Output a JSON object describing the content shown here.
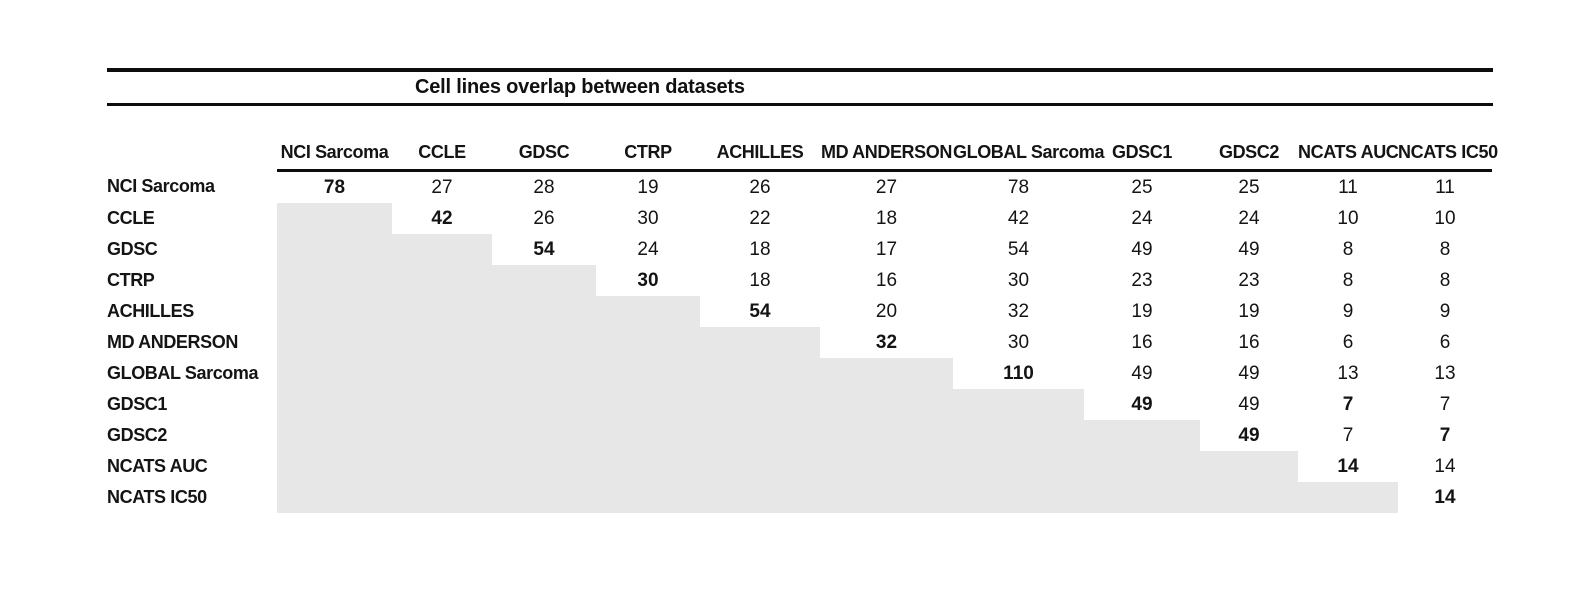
{
  "title": "Cell lines overlap between datasets",
  "columns": [
    "NCI Sarcoma",
    "CCLE",
    "GDSC",
    "CTRP",
    "ACHILLES",
    "MD ANDERSON",
    "GLOBAL Sarcoma",
    "GDSC1",
    "GDSC2",
    "NCATS AUC",
    "NCATS IC50"
  ],
  "rows": [
    {
      "label": "NCI Sarcoma",
      "values": [
        "78",
        "27",
        "28",
        "19",
        "26",
        "27",
        "78",
        "25",
        "25",
        "11",
        "11"
      ],
      "bold": [
        0
      ]
    },
    {
      "label": "CCLE",
      "values": [
        null,
        "42",
        "26",
        "30",
        "22",
        "18",
        "42",
        "24",
        "24",
        "10",
        "10"
      ],
      "bold": [
        1
      ]
    },
    {
      "label": "GDSC",
      "values": [
        null,
        null,
        "54",
        "24",
        "18",
        "17",
        "54",
        "49",
        "49",
        "8",
        "8"
      ],
      "bold": [
        2
      ]
    },
    {
      "label": "CTRP",
      "values": [
        null,
        null,
        null,
        "30",
        "18",
        "16",
        "30",
        "23",
        "23",
        "8",
        "8"
      ],
      "bold": [
        3
      ]
    },
    {
      "label": "ACHILLES",
      "values": [
        null,
        null,
        null,
        null,
        "54",
        "20",
        "32",
        "19",
        "19",
        "9",
        "9"
      ],
      "bold": [
        4
      ]
    },
    {
      "label": "MD ANDERSON",
      "values": [
        null,
        null,
        null,
        null,
        null,
        "32",
        "30",
        "16",
        "16",
        "6",
        "6"
      ],
      "bold": [
        5
      ]
    },
    {
      "label": "GLOBAL Sarcoma",
      "values": [
        null,
        null,
        null,
        null,
        null,
        null,
        "110",
        "49",
        "49",
        "13",
        "13"
      ],
      "bold": [
        6
      ]
    },
    {
      "label": "GDSC1",
      "values": [
        null,
        null,
        null,
        null,
        null,
        null,
        null,
        "49",
        "49",
        "7",
        "7"
      ],
      "bold": [
        7,
        9
      ]
    },
    {
      "label": "GDSC2",
      "values": [
        null,
        null,
        null,
        null,
        null,
        null,
        null,
        null,
        "49",
        "7",
        "7"
      ],
      "bold": [
        8,
        10
      ]
    },
    {
      "label": "NCATS AUC",
      "values": [
        null,
        null,
        null,
        null,
        null,
        null,
        null,
        null,
        null,
        "14",
        "14"
      ],
      "bold": [
        9
      ]
    },
    {
      "label": "NCATS IC50",
      "values": [
        null,
        null,
        null,
        null,
        null,
        null,
        null,
        null,
        null,
        null,
        "14"
      ],
      "bold": [
        10
      ]
    }
  ],
  "colors": {
    "shade": "#e7e7e7",
    "rule": "#0d0d0d"
  }
}
